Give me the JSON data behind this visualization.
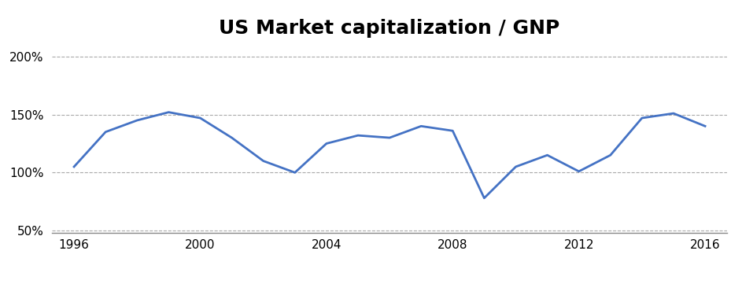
{
  "title": "US Market capitalization / GNP",
  "x_values": [
    1996,
    1997,
    1998,
    1999,
    2000,
    2001,
    2002,
    2003,
    2004,
    2005,
    2006,
    2007,
    2008,
    2009,
    2010,
    2011,
    2012,
    2013,
    2014,
    2015,
    2016
  ],
  "y_values": [
    1.05,
    1.35,
    1.45,
    1.52,
    1.47,
    1.3,
    1.1,
    1.0,
    1.25,
    1.32,
    1.3,
    1.4,
    1.36,
    0.78,
    1.05,
    1.15,
    1.01,
    1.15,
    1.47,
    1.51,
    1.4
  ],
  "line_color": "#4472C4",
  "line_width": 2.0,
  "yticks": [
    0.5,
    1.0,
    1.5,
    2.0
  ],
  "xticks": [
    1996,
    2000,
    2004,
    2008,
    2012,
    2016
  ],
  "grid_color": "#AAAAAA",
  "grid_style": "--",
  "title_fontsize": 18,
  "tick_fontsize": 11,
  "background_color": "#FFFFFF"
}
